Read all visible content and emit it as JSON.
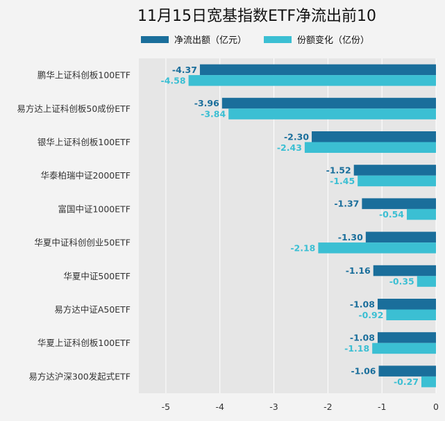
{
  "chart_data": {
    "type": "bar",
    "orientation": "horizontal",
    "title": "11月15日宽基指数ETF净流出前10",
    "categories": [
      "鹏华上证科创板100ETF",
      "易方达上证科创板50成份ETF",
      "银华上证科创板100ETF",
      "华泰柏瑞中证2000ETF",
      "富国中证1000ETF",
      "华夏中证科创创业50ETF",
      "华夏中证500ETF",
      "易方达中证A50ETF",
      "华夏上证科创板100ETF",
      "易方达沪深300发起式ETF"
    ],
    "series": [
      {
        "name": "净流出额（亿元）",
        "color": "#1a6e9b",
        "label_color": "#1a6e9b",
        "values": [
          -4.37,
          -3.96,
          -2.3,
          -1.52,
          -1.37,
          -1.3,
          -1.16,
          -1.08,
          -1.08,
          -1.06
        ]
      },
      {
        "name": "份额变化（亿份）",
        "color": "#3bbfd3",
        "label_color": "#3bbfd3",
        "values": [
          -4.58,
          -3.84,
          -2.43,
          -1.45,
          -0.54,
          -2.18,
          -0.35,
          -0.92,
          -1.18,
          -0.27
        ]
      }
    ],
    "xlim": [
      -5.5,
      0
    ],
    "xticks": [
      -5,
      -4,
      -3,
      -2,
      -1,
      0
    ],
    "grid": true,
    "legend_position": "top"
  },
  "colors": {
    "background": "#f3f3f3",
    "plot_area": "#e6e6e6",
    "grid": "#ffffff"
  }
}
